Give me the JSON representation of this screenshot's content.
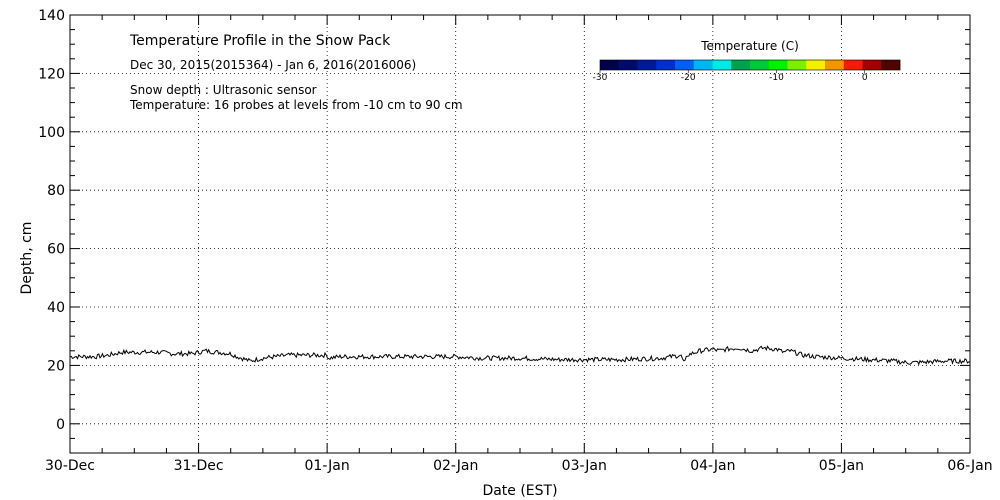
{
  "chart_data": {
    "type": "line",
    "title": "Temperature Profile in the Snow Pack",
    "subtitle": "Dec 30, 2015(2015364) - Jan  6, 2016(2016006)",
    "annotations": [
      "Snow depth : Ultrasonic sensor",
      "Temperature: 16 probes at levels from -10 cm to 90 cm"
    ],
    "xlabel": "Date (EST)",
    "ylabel": "Depth, cm",
    "x_ticks": [
      "30-Dec",
      "31-Dec",
      "01-Jan",
      "02-Jan",
      "03-Jan",
      "04-Jan",
      "05-Jan",
      "06-Jan"
    ],
    "y_ticks": [
      "0",
      "20",
      "40",
      "60",
      "80",
      "100",
      "120",
      "140"
    ],
    "xlim": [
      "2015-12-30 00:00",
      "2016-01-06 00:00"
    ],
    "ylim": [
      -10,
      140
    ],
    "grid": true,
    "colorbar": {
      "title": "Temperature (C)",
      "ticks": [
        "-30",
        "-20",
        "-10",
        "0"
      ],
      "range": [
        -30,
        4
      ],
      "colors": [
        "#00004d",
        "#000a6e",
        "#001a96",
        "#0030c8",
        "#0060f0",
        "#00b4f0",
        "#00e8e8",
        "#00a050",
        "#00c838",
        "#00f000",
        "#78f000",
        "#f0f000",
        "#f09600",
        "#f01e00",
        "#a00000",
        "#500000"
      ]
    },
    "series": [
      {
        "name": "",
        "x_days": [
          0,
          0.1,
          0.2,
          0.3,
          0.4,
          0.5,
          0.6,
          0.7,
          0.8,
          0.9,
          0.95,
          1.05,
          1.15,
          1.25,
          1.3,
          1.4,
          1.5,
          1.6,
          1.7,
          1.8,
          1.9,
          2.0,
          2.01,
          2.1,
          2.3,
          2.5,
          2.8,
          3.0,
          3.2,
          3.5,
          3.8,
          4.0,
          4.3,
          4.6,
          4.75,
          4.78,
          4.8,
          4.9,
          5.0,
          5.05,
          5.1,
          5.2,
          5.3,
          5.4,
          5.5,
          5.55,
          5.6,
          5.7,
          5.8,
          6.0,
          6.2,
          6.4,
          6.5,
          6.6,
          6.8,
          7.0
        ],
        "values": [
          23,
          23,
          23,
          23.5,
          24.5,
          24.5,
          24.5,
          24.5,
          24,
          24,
          24,
          25,
          24.5,
          24,
          23,
          21.5,
          22.5,
          23,
          23.5,
          23.5,
          23.5,
          23.5,
          22.5,
          23,
          23,
          23,
          23,
          23,
          22.5,
          22.5,
          22,
          22,
          22,
          22.5,
          23.5,
          20.5,
          23.5,
          25,
          25.5,
          25,
          25.5,
          26,
          25,
          26,
          25.5,
          24.5,
          25,
          23.5,
          23,
          22.5,
          22,
          21.5,
          21,
          21,
          21.5,
          21.5
        ]
      }
    ]
  }
}
